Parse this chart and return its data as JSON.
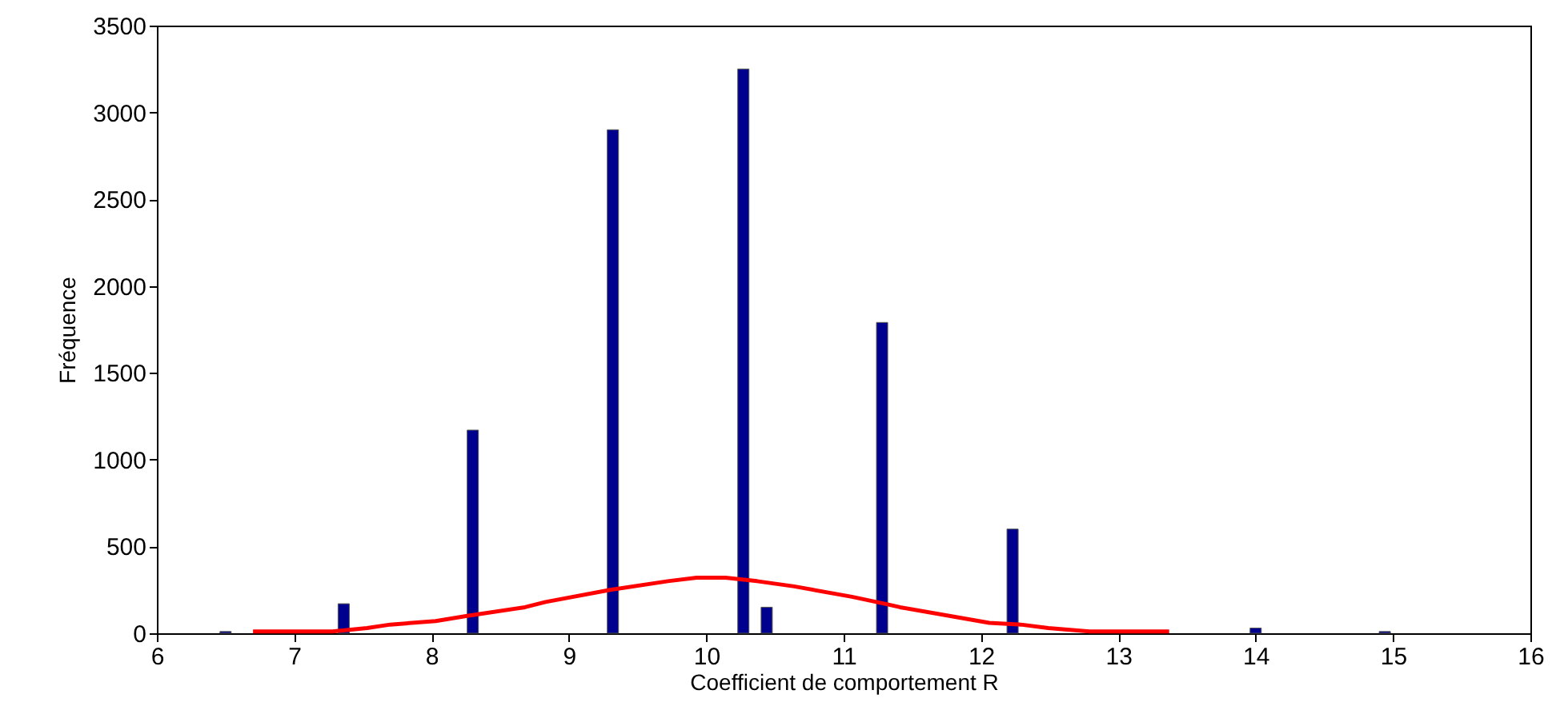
{
  "chart_data": {
    "type": "bar",
    "xlabel": "Coefficient de comportement R",
    "ylabel": "Fréquence",
    "xlim": [
      6,
      16
    ],
    "xticks": [
      6,
      7,
      8,
      9,
      10,
      11,
      12,
      13,
      14,
      15,
      16
    ],
    "ylim": [
      0,
      3500
    ],
    "yticks": [
      0,
      500,
      1000,
      1500,
      2000,
      2500,
      3000,
      3500
    ],
    "grid": false,
    "series": [
      {
        "color": "#00008f",
        "x": [
          6.5,
          7.36,
          8.3,
          9.32,
          10.27,
          10.44,
          11.28,
          12.23,
          14.0,
          14.94
        ],
        "values": [
          10,
          170,
          1170,
          2900,
          3250,
          150,
          1790,
          600,
          30,
          10
        ]
      },
      {
        "type": "line",
        "color": "#ff0000",
        "x": [
          6.7,
          7.28,
          7.53,
          7.7,
          8.03,
          8.26,
          8.68,
          8.83,
          9.3,
          9.72,
          9.93,
          10.14,
          10.37,
          10.64,
          11.06,
          11.3,
          11.41,
          12.06,
          12.29,
          12.49,
          12.79,
          13.37
        ],
        "values": [
          10,
          10,
          30,
          50,
          70,
          100,
          150,
          180,
          250,
          300,
          320,
          320,
          300,
          270,
          210,
          170,
          150,
          60,
          50,
          30,
          10,
          10
        ]
      }
    ]
  }
}
